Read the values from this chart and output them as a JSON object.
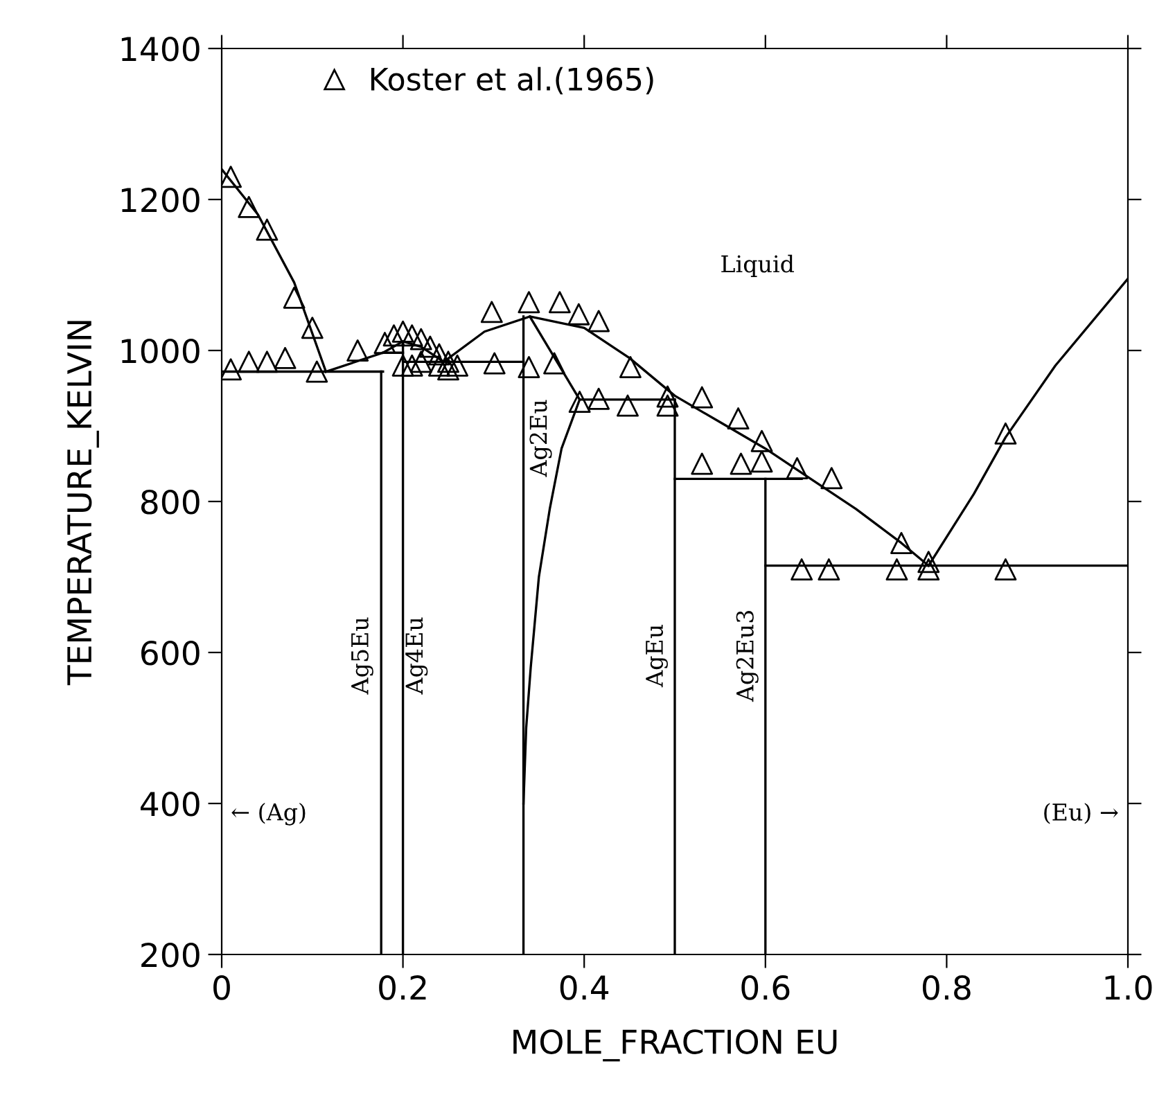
{
  "chart_data": {
    "type": "line",
    "xlabel": "MOLE_FRACTION EU",
    "ylabel": "TEMPERATURE_KELVIN",
    "xlim": [
      0,
      1.0
    ],
    "ylim": [
      200,
      1400
    ],
    "xticks": [
      0,
      0.2,
      0.4,
      0.6,
      0.8,
      {
        "value": 1.0,
        "label": "1.0"
      }
    ],
    "yticks": [
      200,
      400,
      600,
      800,
      1000,
      1200,
      1400
    ],
    "grid": false,
    "legend": "top left",
    "line_style": "solid",
    "series": [
      {
        "color": "#000000",
        "marker": "none",
        "x": [
          0,
          0.04,
          0.08,
          0.115
        ],
        "values": [
          1240,
          1180,
          1090,
          972
        ]
      },
      {
        "type": "line",
        "color": "#000000",
        "marker": "none",
        "x": [
          0,
          0.178
        ],
        "values": [
          972,
          972
        ]
      },
      {
        "type": "line",
        "color": "#000000",
        "marker": "none",
        "x": [
          0.115,
          0.178
        ],
        "values": [
          972,
          997
        ]
      },
      {
        "type": "line",
        "color": "#000000",
        "marker": "none",
        "x": [
          0.178,
          0.2
        ],
        "values": [
          997,
          997
        ]
      },
      {
        "type": "line",
        "color": "#000000",
        "marker": "none",
        "x": [
          0.178,
          0.2,
          0.22,
          0.245
        ],
        "values": [
          997,
          1012,
          1005,
          985
        ]
      },
      {
        "type": "line",
        "color": "#000000",
        "marker": "none",
        "x": [
          0.2,
          0.333
        ],
        "values": [
          985,
          985
        ]
      },
      {
        "type": "line",
        "color": "#000000",
        "marker": "none",
        "x": [
          0.245,
          0.29,
          0.34,
          0.4,
          0.45,
          0.5,
          0.55,
          0.6,
          0.65,
          0.7,
          0.75,
          0.78
        ],
        "values": [
          985,
          1025,
          1045,
          1030,
          990,
          940,
          905,
          870,
          830,
          790,
          745,
          715
        ]
      },
      {
        "type": "line",
        "color": "#000000",
        "marker": "none",
        "x": [
          0.34,
          0.395
        ],
        "values": [
          1045,
          935
        ]
      },
      {
        "type": "line",
        "color": "#000000",
        "marker": "none",
        "x": [
          0.395,
          0.5
        ],
        "values": [
          935,
          935
        ]
      },
      {
        "type": "line",
        "color": "#000000",
        "marker": "none",
        "x": [
          0.333,
          0.336,
          0.341,
          0.35,
          0.362,
          0.375,
          0.395
        ],
        "values": [
          400,
          500,
          580,
          700,
          790,
          870,
          935
        ]
      },
      {
        "type": "line",
        "color": "#000000",
        "marker": "none",
        "x": [
          0.5,
          0.64
        ],
        "values": [
          830,
          830
        ]
      },
      {
        "type": "line",
        "color": "#000000",
        "marker": "none",
        "x": [
          0.6,
          1.0
        ],
        "values": [
          715,
          715
        ]
      },
      {
        "type": "line",
        "color": "#000000",
        "marker": "none",
        "x": [
          0.78,
          0.83,
          0.865,
          0.92,
          1.0
        ],
        "values": [
          715,
          810,
          885,
          980,
          1095
        ]
      },
      {
        "type": "line",
        "color": "#000000",
        "marker": "none",
        "x": [
          0.176,
          0.176
        ],
        "values": [
          200,
          972
        ]
      },
      {
        "type": "line",
        "color": "#000000",
        "marker": "none",
        "x": [
          0.2,
          0.2
        ],
        "values": [
          200,
          1012
        ]
      },
      {
        "type": "line",
        "color": "#000000",
        "marker": "none",
        "x": [
          0.333,
          0.333
        ],
        "values": [
          200,
          1045
        ]
      },
      {
        "type": "line",
        "color": "#000000",
        "marker": "none",
        "x": [
          0.5,
          0.5
        ],
        "values": [
          200,
          935
        ]
      },
      {
        "type": "line",
        "color": "#000000",
        "marker": "none",
        "x": [
          0.6,
          0.6
        ],
        "values": [
          200,
          830
        ]
      },
      {
        "type": "scatter",
        "name": "Koster et al.(1965)",
        "color": "#000000",
        "marker": "triangle",
        "x": [
          0.01,
          0.03,
          0.05,
          0.08,
          0.1,
          0.105,
          0.01,
          0.03,
          0.05,
          0.07,
          0.15,
          0.18,
          0.19,
          0.2,
          0.21,
          0.22,
          0.23,
          0.24,
          0.25,
          0.2,
          0.21,
          0.22,
          0.24,
          0.25,
          0.26,
          0.298,
          0.339,
          0.373,
          0.394,
          0.416,
          0.301,
          0.339,
          0.367,
          0.451,
          0.492,
          0.53,
          0.395,
          0.416,
          0.448,
          0.492,
          0.57,
          0.596,
          0.53,
          0.573,
          0.596,
          0.635,
          0.673,
          0.64,
          0.67,
          0.745,
          0.78,
          0.865,
          0.75,
          0.78,
          0.865
        ],
        "values": [
          1230,
          1190,
          1160,
          1070,
          1030,
          972,
          975,
          985,
          985,
          990,
          1000,
          1010,
          1020,
          1025,
          1020,
          1015,
          1005,
          995,
          985,
          980,
          980,
          985,
          980,
          975,
          980,
          1051,
          1064,
          1064,
          1048,
          1039,
          983,
          978,
          983,
          978,
          939,
          938,
          932,
          936,
          927,
          927,
          910,
          880,
          850,
          850,
          853,
          844,
          831,
          710,
          710,
          710,
          710,
          710,
          745,
          720,
          890
        ]
      }
    ],
    "annotations": [
      "Liquid",
      "Ag5Eu",
      "Ag4Eu",
      "Ag2Eu",
      "AgEu",
      "Ag2Eu3",
      "← (Ag)",
      "(Eu) →"
    ]
  }
}
